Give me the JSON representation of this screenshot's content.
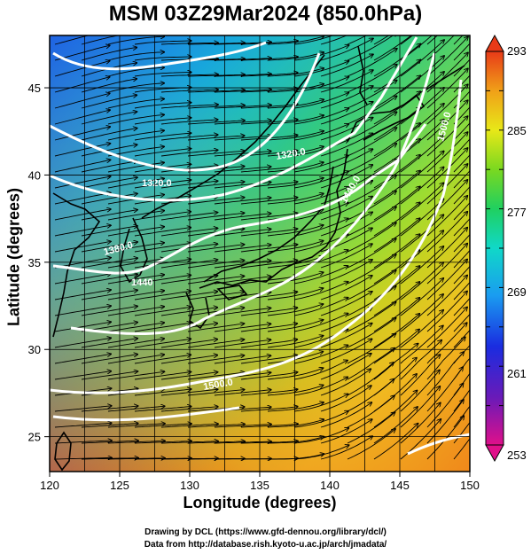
{
  "title": "MSM 03Z29Mar2024 (850.0hPa)",
  "axes": {
    "xlabel": "Longitude (degrees)",
    "ylabel": "Latitude  (degrees)",
    "xlim": [
      120,
      150
    ],
    "ylim": [
      23,
      48
    ],
    "xticks": [
      "120",
      "125",
      "130",
      "135",
      "140",
      "145",
      "150"
    ],
    "yticks": [
      "25",
      "30",
      "35",
      "40",
      "45"
    ]
  },
  "colorbar": {
    "labels": [
      "293",
      "285",
      "277",
      "269",
      "261",
      "253"
    ],
    "range": [
      253,
      293
    ],
    "colors": [
      "#e0108a",
      "#6a1ab8",
      "#1a2ce0",
      "#1a9cf0",
      "#10d8c8",
      "#20d060",
      "#7ad820",
      "#e8e818",
      "#f0a018",
      "#e83a18"
    ]
  },
  "contours": {
    "color": "#ffffff",
    "labels": [
      "1320.0",
      "1320.0",
      "1380.0",
      "1440",
      "1440.0",
      "1500.0",
      "1500.0"
    ]
  },
  "credits": {
    "line1": "Drawing by DCL (https://www.gfd-dennou.org/library/dcl/)",
    "line2": "Data from http://database.rish.kyoto-u.ac.jp/arch/jmadata/"
  }
}
